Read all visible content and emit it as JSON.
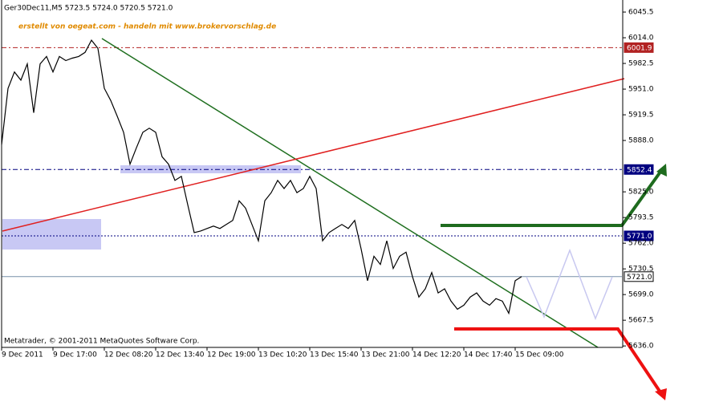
{
  "chart_data": {
    "type": "line",
    "header": "Ger30Dec11,M5  5723.5 5724.0 5720.5 5721.0",
    "subtitle": "erstellt von oegeat.com - handeln mit www.brokervorschlag.de",
    "footer": "Metatrader, © 2001-2011 MetaQuotes Software Corp.",
    "color": "#000000",
    "x": [
      0,
      1,
      2,
      3,
      4,
      5,
      6,
      7,
      8,
      9,
      10,
      11,
      12,
      13,
      14,
      15,
      16,
      17,
      18,
      19,
      20,
      21,
      22,
      23,
      24,
      25,
      26,
      27,
      28,
      29,
      30,
      31,
      32,
      33,
      34,
      35,
      36,
      37,
      38,
      39,
      40,
      41,
      42,
      43,
      44,
      45,
      46,
      47,
      48,
      49,
      50,
      51,
      52,
      53,
      54,
      55,
      56,
      57,
      58,
      59,
      60,
      61,
      62,
      63,
      64,
      65,
      66,
      67,
      68,
      69,
      70,
      71,
      72,
      73,
      74,
      75,
      76,
      77,
      78,
      79,
      80,
      81
    ],
    "values": [
      5883,
      5952,
      5972,
      5962,
      5982,
      5922,
      5982,
      5991,
      5972,
      5991,
      5986,
      5989,
      5991,
      5996,
      6011,
      6001,
      5952,
      5937,
      5918,
      5898,
      5859,
      5879,
      5898,
      5903,
      5898,
      5868,
      5859,
      5839,
      5844,
      5809,
      5775,
      5777,
      5780,
      5783,
      5780,
      5785,
      5790,
      5814,
      5805,
      5785,
      5765,
      5814,
      5824,
      5839,
      5829,
      5839,
      5824,
      5829,
      5844,
      5829,
      5765,
      5775,
      5780,
      5785,
      5780,
      5790,
      5755,
      5716,
      5746,
      5736,
      5765,
      5731,
      5746,
      5751,
      5721,
      5696,
      5706,
      5726,
      5701,
      5706,
      5691,
      5681,
      5686,
      5696,
      5701,
      5691,
      5686,
      5694,
      5691,
      5676,
      5716,
      5721
    ],
    "xlim": [
      -0.25,
      96.625
    ],
    "xticks": [
      {
        "value": 0,
        "label": "9 Dec 2011"
      },
      {
        "value": 8,
        "label": "9 Dec 17:00"
      },
      {
        "value": 16,
        "label": "12 Dec 08:20"
      },
      {
        "value": 24,
        "label": "12 Dec 13:40"
      },
      {
        "value": 32,
        "label": "12 Dec 19:00"
      },
      {
        "value": 40,
        "label": "13 Dec 10:20"
      },
      {
        "value": 48,
        "label": "13 Dec 15:40"
      },
      {
        "value": 56,
        "label": "13 Dec 21:00"
      },
      {
        "value": 64,
        "label": "14 Dec 12:20"
      },
      {
        "value": 72,
        "label": "14 Dec 17:40"
      },
      {
        "value": 80,
        "label": "15 Dec 09:00"
      }
    ],
    "ylim": [
      5634.2,
      6060.3
    ],
    "yticks": [
      6045.5,
      {
        "value": 6014,
        "label": "6014.0"
      },
      5982.5,
      {
        "value": 5951,
        "label": "5951.0"
      },
      5919.5,
      {
        "value": 5888,
        "label": "5888.0"
      },
      {
        "value": 5825,
        "label": "5825.0"
      },
      5793.5,
      {
        "value": 5762,
        "label": "5762.0"
      },
      5730.5,
      {
        "value": 5699,
        "label": "5699.0"
      },
      5667.5,
      {
        "value": 5636,
        "label": "5636.0"
      }
    ],
    "levels": [
      6001.9,
      5852.4,
      {
        "value": 5771,
        "label": "5771.0"
      },
      {
        "value": 5721,
        "label": "5721.0"
      }
    ],
    "level_colors": [
      "#b22222",
      "#000080",
      "#000080",
      "#7890a8"
    ],
    "grid": false
  }
}
